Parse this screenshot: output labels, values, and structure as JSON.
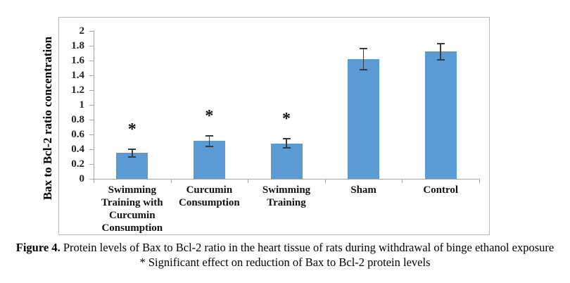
{
  "figure": {
    "caption_label": "Figure 4.",
    "caption_text": "Protein levels of Bax to Bcl-2 ratio in the heart tissue of rats during withdrawal of binge ethanol exposure",
    "caption_note": "* Significant effect on reduction of Bax to Bcl-2 protein levels"
  },
  "chart_data": {
    "type": "bar",
    "title": "",
    "xlabel": "",
    "ylabel": "Bax to Bcl-2 ratio concentration",
    "ylim": [
      0,
      2
    ],
    "ytick_step": 0.2,
    "ytick_labels": [
      "0",
      "0.2",
      "0.4",
      "0.6",
      "0.8",
      "1",
      "1.2",
      "1.4",
      "1.6",
      "1.8",
      "2"
    ],
    "grid": false,
    "legend": false,
    "categories": [
      "Swimming Training with Curcumin Consumption",
      "Curcumin Consumption",
      "Swimming Training",
      "Sham",
      "Control"
    ],
    "values": [
      0.35,
      0.51,
      0.48,
      1.62,
      1.72
    ],
    "errors": [
      0.05,
      0.07,
      0.06,
      0.14,
      0.11
    ],
    "significant": [
      true,
      true,
      true,
      false,
      false
    ],
    "significance_marker": "*",
    "colors": {
      "bar": "#5B9BD5",
      "error_bar": "#3a3a3a",
      "axis": "#a6a6a6",
      "frame": "#b8b8b8",
      "text": "#000000"
    }
  }
}
